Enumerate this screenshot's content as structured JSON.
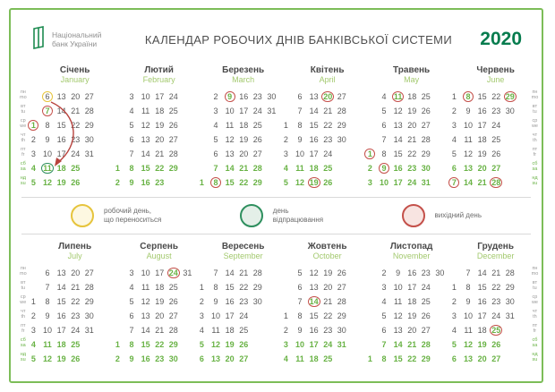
{
  "header": {
    "logo_line1": "Національний",
    "logo_line2": "банк України",
    "title": "КАЛЕНДАР РОБОЧИХ ДНІВ БАНКІВСЬКОЇ СИСТЕМИ",
    "year": "2020"
  },
  "colors": {
    "border_green": "#7cbd58",
    "brand_green": "#077c4e",
    "weekend_green": "#68b244",
    "month_en_green": "#a3c96e",
    "circle_red": "#c4504a",
    "circle_yellow": "#e6c43c",
    "circle_green": "#2e8f5e",
    "arrow_red": "#b8433e"
  },
  "day_labels": {
    "ua": [
      "пн",
      "вт",
      "ср",
      "чт",
      "пт",
      "сб",
      "нд"
    ],
    "en": [
      "mo",
      "tu",
      "we",
      "th",
      "fr",
      "sa",
      "su"
    ]
  },
  "legend": {
    "items": [
      {
        "circle": "yellow",
        "line1": "робочий день,",
        "line2": "що переноситься"
      },
      {
        "circle": "green",
        "line1": "день",
        "line2": "відпрацювання"
      },
      {
        "circle": "red",
        "line1": "вихідний день",
        "line2": ""
      }
    ]
  },
  "months": [
    {
      "id": "january",
      "ua": "Січень",
      "en": "January",
      "arrow": true,
      "cells": [
        [
          null,
          {
            "n": "6",
            "o": "y"
          },
          "13",
          "20",
          "27",
          null
        ],
        [
          null,
          {
            "n": "7",
            "h": 1,
            "o": "r"
          },
          "14",
          "21",
          "28",
          null
        ],
        [
          {
            "n": "1",
            "h": 1,
            "o": "r"
          },
          "8",
          "15",
          "22",
          "29",
          null
        ],
        [
          "2",
          "9",
          "16",
          "23",
          "30",
          null
        ],
        [
          "3",
          "10",
          "17",
          "24",
          "31",
          null
        ],
        [
          "4",
          {
            "n": "11",
            "o": "g"
          },
          "18",
          "25",
          null,
          null
        ],
        [
          "5",
          "12",
          "19",
          "26",
          null,
          null
        ]
      ]
    },
    {
      "id": "february",
      "ua": "Лютий",
      "en": "February",
      "cells": [
        [
          null,
          "3",
          "10",
          "17",
          "24",
          null
        ],
        [
          null,
          "4",
          "11",
          "18",
          "25",
          null
        ],
        [
          null,
          "5",
          "12",
          "19",
          "26",
          null
        ],
        [
          null,
          "6",
          "13",
          "20",
          "27",
          null
        ],
        [
          null,
          "7",
          "14",
          "21",
          "28",
          null
        ],
        [
          "1",
          "8",
          "15",
          "22",
          "29",
          null
        ],
        [
          "2",
          "9",
          "16",
          "23",
          null,
          null
        ]
      ]
    },
    {
      "id": "march",
      "ua": "Березень",
      "en": "March",
      "cells": [
        [
          null,
          "2",
          {
            "n": "9",
            "h": 1,
            "o": "r"
          },
          "16",
          "23",
          "30"
        ],
        [
          null,
          "3",
          "10",
          "17",
          "24",
          "31"
        ],
        [
          null,
          "4",
          "11",
          "18",
          "25",
          null
        ],
        [
          null,
          "5",
          "12",
          "19",
          "26",
          null
        ],
        [
          null,
          "6",
          "13",
          "20",
          "27",
          null
        ],
        [
          null,
          "7",
          "14",
          "21",
          "28",
          null
        ],
        [
          "1",
          {
            "n": "8",
            "o": "r"
          },
          "15",
          "22",
          "29",
          null
        ]
      ]
    },
    {
      "id": "april",
      "ua": "Квітень",
      "en": "April",
      "cells": [
        [
          null,
          "6",
          "13",
          {
            "n": "20",
            "h": 1,
            "o": "r"
          },
          "27",
          null
        ],
        [
          null,
          "7",
          "14",
          "21",
          "28",
          null
        ],
        [
          "1",
          "8",
          "15",
          "22",
          "29",
          null
        ],
        [
          "2",
          "9",
          "16",
          "23",
          "30",
          null
        ],
        [
          "3",
          "10",
          "17",
          "24",
          null,
          null
        ],
        [
          "4",
          "11",
          "18",
          "25",
          null,
          null
        ],
        [
          "5",
          "12",
          {
            "n": "19",
            "o": "r"
          },
          "26",
          null,
          null
        ]
      ]
    },
    {
      "id": "may",
      "ua": "Травень",
      "en": "May",
      "cells": [
        [
          null,
          "4",
          {
            "n": "11",
            "h": 1,
            "o": "r"
          },
          "18",
          "25",
          null
        ],
        [
          null,
          "5",
          "12",
          "19",
          "26",
          null
        ],
        [
          null,
          "6",
          "13",
          "20",
          "27",
          null
        ],
        [
          null,
          "7",
          "14",
          "21",
          "28",
          null
        ],
        [
          {
            "n": "1",
            "h": 1,
            "o": "r"
          },
          "8",
          "15",
          "22",
          "29",
          null
        ],
        [
          "2",
          {
            "n": "9",
            "o": "r"
          },
          "16",
          "23",
          "30",
          null
        ],
        [
          "3",
          "10",
          "17",
          "24",
          "31",
          null
        ]
      ]
    },
    {
      "id": "june",
      "ua": "Червень",
      "en": "June",
      "cells": [
        [
          "1",
          {
            "n": "8",
            "h": 1,
            "o": "r"
          },
          "15",
          "22",
          {
            "n": "29",
            "h": 1,
            "o": "r"
          },
          null
        ],
        [
          "2",
          "9",
          "16",
          "23",
          "30",
          null
        ],
        [
          "3",
          "10",
          "17",
          "24",
          null,
          null
        ],
        [
          "4",
          "11",
          "18",
          "25",
          null,
          null
        ],
        [
          "5",
          "12",
          "19",
          "26",
          null,
          null
        ],
        [
          "6",
          "13",
          "20",
          "27",
          null,
          null
        ],
        [
          {
            "n": "7",
            "o": "r"
          },
          "14",
          "21",
          {
            "n": "28",
            "o": "r"
          },
          null,
          null
        ]
      ]
    },
    {
      "id": "july",
      "ua": "Липень",
      "en": "July",
      "cells": [
        [
          null,
          "6",
          "13",
          "20",
          "27",
          null
        ],
        [
          null,
          "7",
          "14",
          "21",
          "28",
          null
        ],
        [
          "1",
          "8",
          "15",
          "22",
          "29",
          null
        ],
        [
          "2",
          "9",
          "16",
          "23",
          "30",
          null
        ],
        [
          "3",
          "10",
          "17",
          "24",
          "31",
          null
        ],
        [
          "4",
          "11",
          "18",
          "25",
          null,
          null
        ],
        [
          "5",
          "12",
          "19",
          "26",
          null,
          null
        ]
      ]
    },
    {
      "id": "august",
      "ua": "Серпень",
      "en": "August",
      "cells": [
        [
          null,
          "3",
          "10",
          "17",
          {
            "n": "24",
            "h": 1,
            "o": "r"
          },
          "31"
        ],
        [
          null,
          "4",
          "11",
          "18",
          "25",
          null
        ],
        [
          null,
          "5",
          "12",
          "19",
          "26",
          null
        ],
        [
          null,
          "6",
          "13",
          "20",
          "27",
          null
        ],
        [
          null,
          "7",
          "14",
          "21",
          "28",
          null
        ],
        [
          "1",
          "8",
          "15",
          "22",
          "29",
          null
        ],
        [
          "2",
          "9",
          "16",
          "23",
          "30",
          null
        ]
      ]
    },
    {
      "id": "september",
      "ua": "Вересень",
      "en": "September",
      "cells": [
        [
          null,
          "7",
          "14",
          "21",
          "28",
          null
        ],
        [
          "1",
          "8",
          "15",
          "22",
          "29",
          null
        ],
        [
          "2",
          "9",
          "16",
          "23",
          "30",
          null
        ],
        [
          "3",
          "10",
          "17",
          "24",
          null,
          null
        ],
        [
          "4",
          "11",
          "18",
          "25",
          null,
          null
        ],
        [
          "5",
          "12",
          "19",
          "26",
          null,
          null
        ],
        [
          "6",
          "13",
          "20",
          "27",
          null,
          null
        ]
      ]
    },
    {
      "id": "october",
      "ua": "Жовтень",
      "en": "October",
      "cells": [
        [
          null,
          "5",
          "12",
          "19",
          "26",
          null
        ],
        [
          null,
          "6",
          "13",
          "20",
          "27",
          null
        ],
        [
          null,
          "7",
          {
            "n": "14",
            "h": 1,
            "o": "r"
          },
          "21",
          "28",
          null
        ],
        [
          "1",
          "8",
          "15",
          "22",
          "29",
          null
        ],
        [
          "2",
          "9",
          "16",
          "23",
          "30",
          null
        ],
        [
          "3",
          "10",
          "17",
          "24",
          "31",
          null
        ],
        [
          "4",
          "11",
          "18",
          "25",
          null,
          null
        ]
      ]
    },
    {
      "id": "november",
      "ua": "Листопад",
      "en": "November",
      "cells": [
        [
          null,
          "2",
          "9",
          "16",
          "23",
          "30"
        ],
        [
          null,
          "3",
          "10",
          "17",
          "24",
          null
        ],
        [
          null,
          "4",
          "11",
          "18",
          "25",
          null
        ],
        [
          null,
          "5",
          "12",
          "19",
          "26",
          null
        ],
        [
          null,
          "6",
          "13",
          "20",
          "27",
          null
        ],
        [
          null,
          "7",
          "14",
          "21",
          "28",
          null
        ],
        [
          "1",
          "8",
          "15",
          "22",
          "29",
          null
        ]
      ]
    },
    {
      "id": "december",
      "ua": "Грудень",
      "en": "December",
      "cells": [
        [
          null,
          "7",
          "14",
          "21",
          "28",
          null
        ],
        [
          "1",
          "8",
          "15",
          "22",
          "29",
          null
        ],
        [
          "2",
          "9",
          "16",
          "23",
          "30",
          null
        ],
        [
          "3",
          "10",
          "17",
          "24",
          "31",
          null
        ],
        [
          "4",
          "11",
          "18",
          {
            "n": "25",
            "h": 1,
            "o": "r"
          },
          null,
          null
        ],
        [
          "5",
          "12",
          "19",
          "26",
          null,
          null
        ],
        [
          "6",
          "13",
          "20",
          "27",
          null,
          null
        ]
      ]
    }
  ]
}
